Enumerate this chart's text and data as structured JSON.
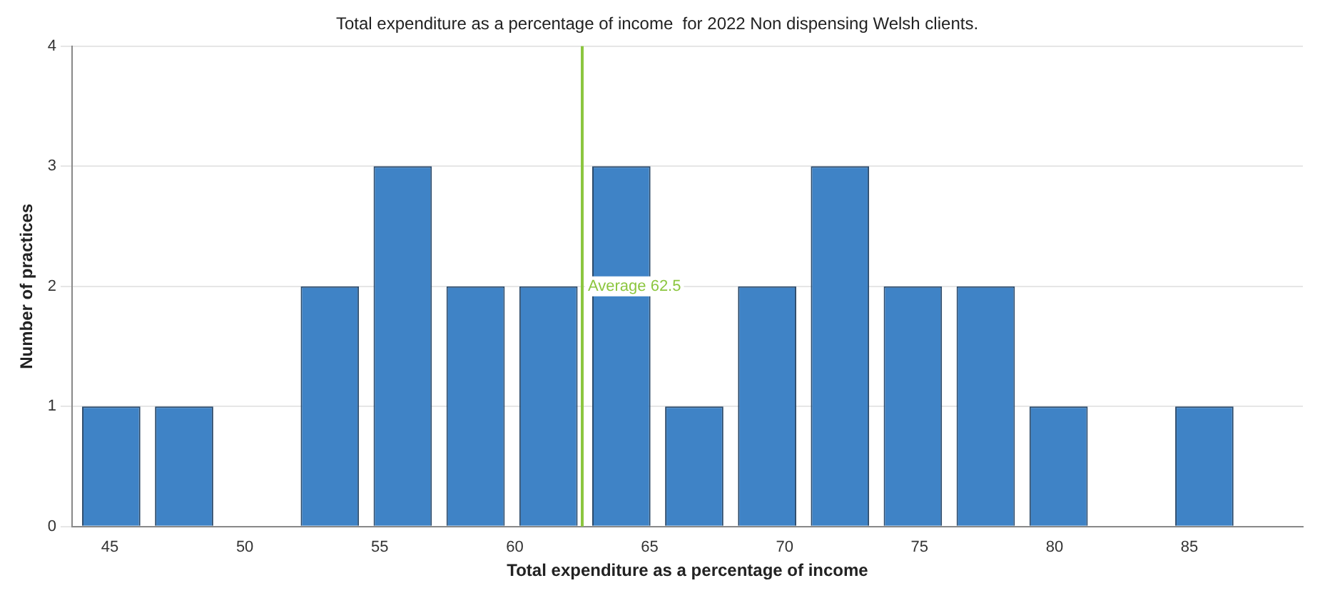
{
  "chart_data": {
    "type": "histogram",
    "title": "Total expenditure as a percentage of income  for 2022 Non dispensing Welsh clients.",
    "xlabel": "Total expenditure as a percentage of income",
    "ylabel": "Number of practices",
    "bins": [
      43.7,
      46.4,
      49.1,
      51.8,
      54.5,
      57.2,
      59.9,
      62.6,
      65.3,
      68.0,
      70.7,
      73.4,
      76.1,
      78.8,
      81.5,
      84.2,
      86.9
    ],
    "values": [
      1,
      1,
      0,
      2,
      3,
      2,
      2,
      3,
      1,
      2,
      3,
      2,
      2,
      1,
      0,
      1
    ],
    "color": "#3f83c6",
    "xlim": [
      43.6,
      89.2
    ],
    "xticks": [
      45,
      50,
      55,
      60,
      65,
      70,
      75,
      80,
      85
    ],
    "ylim": [
      0,
      4
    ],
    "yticks": [
      0,
      1,
      2,
      3,
      4
    ],
    "grid": "y",
    "legend": false,
    "ref_lines": [
      {
        "axis": "x",
        "value": 62.5,
        "label": "Average 62.5",
        "color": "#8cc63f"
      }
    ]
  }
}
